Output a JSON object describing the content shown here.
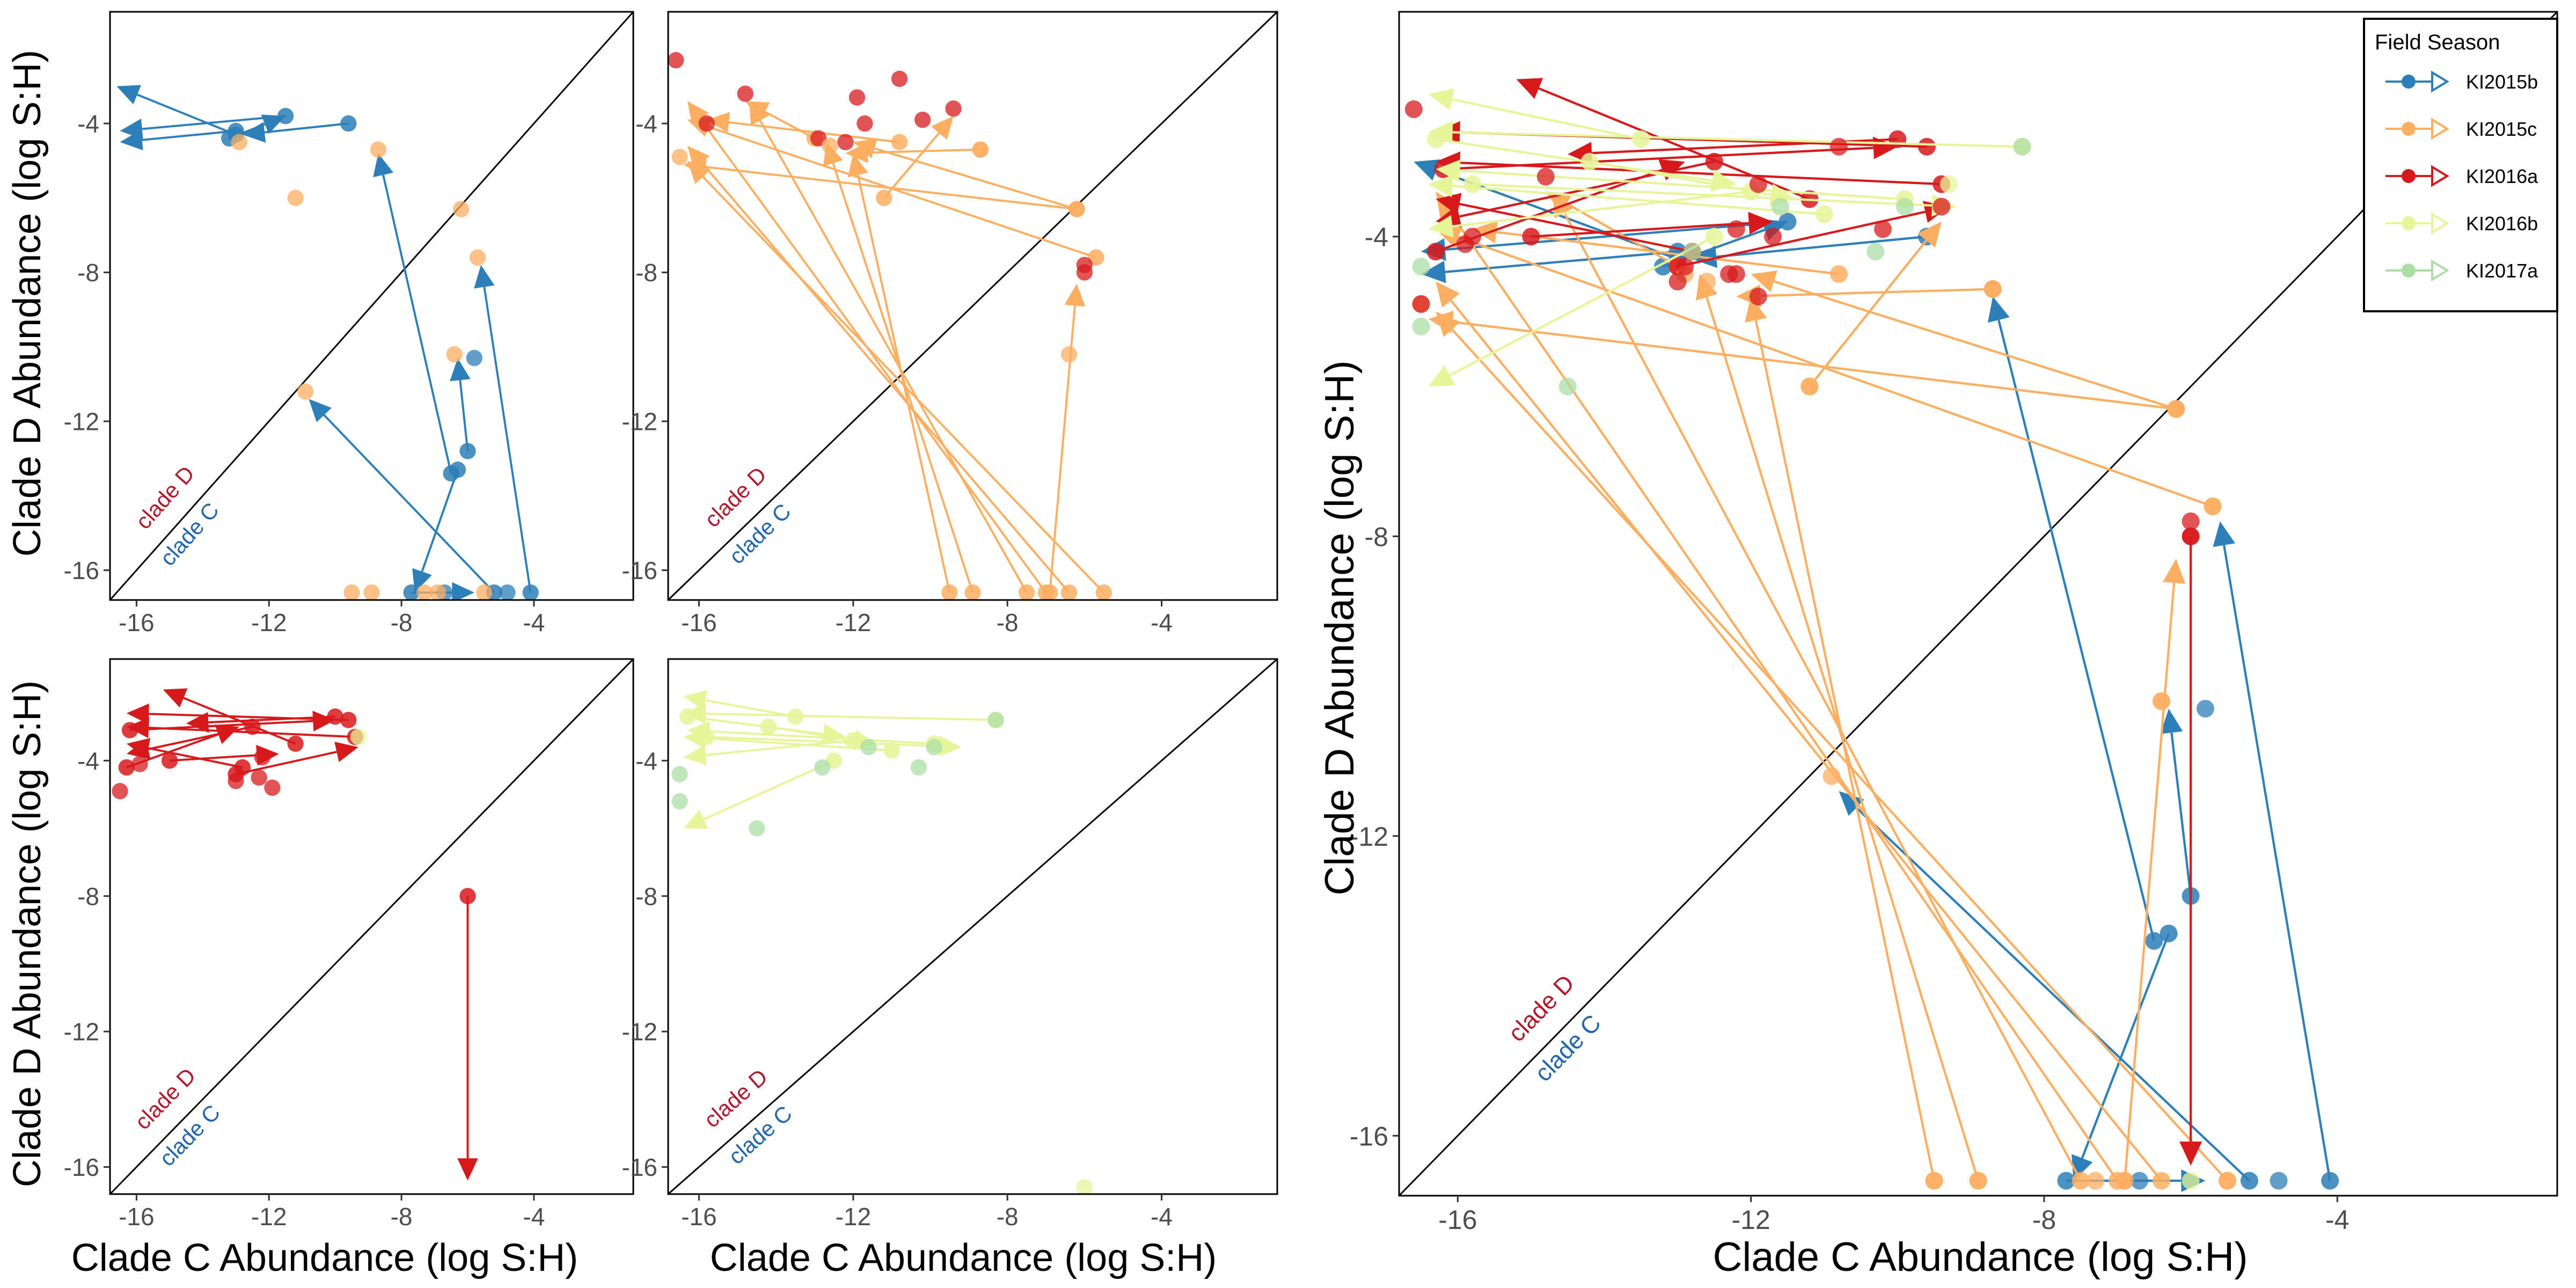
{
  "legend": {
    "title": "Field Season",
    "items": [
      {
        "label": "KI2015b",
        "color": "#2C7FB8"
      },
      {
        "label": "KI2015c",
        "color": "#FDAE61"
      },
      {
        "label": "KI2016a",
        "color": "#D7191C"
      },
      {
        "label": "KI2016b",
        "color": "#E6F598"
      },
      {
        "label": "KI2017a",
        "color": "#ABDDA4"
      }
    ]
  },
  "diagonal_labels": {
    "upper": "clade D",
    "lower": "clade C",
    "upper_color": "#B2182B",
    "lower_color": "#2166AC"
  },
  "axis_text": {
    "x": "Clade C Abundance (log S:H)",
    "y": "Clade D Abundance (log S:H)"
  },
  "chart_data": [
    {
      "type": "scatter",
      "panel": "top-left",
      "season": "KI2015b",
      "xlabel": "",
      "ylabel": "Clade D Abundance (log S:H)",
      "xlim": [
        -16.8,
        -1
      ],
      "ylim": [
        -16.8,
        -1
      ],
      "xticks": [
        -16,
        -12,
        -8,
        -4
      ],
      "yticks": [
        -16,
        -12,
        -8,
        -4
      ],
      "arrows": [
        {
          "from": [
            -9.6,
            -4.0
          ],
          "to": [
            -12.8,
            -4.3
          ],
          "season": "KI2015b"
        },
        {
          "from": [
            -13.0,
            -4.2
          ],
          "to": [
            -16.5,
            -4.5
          ],
          "season": "KI2015b"
        },
        {
          "from": [
            -11.5,
            -3.8
          ],
          "to": [
            -16.5,
            -4.2
          ],
          "season": "KI2015b"
        },
        {
          "from": [
            -13.0,
            -4.3
          ],
          "to": [
            -16.6,
            -3.0
          ],
          "season": "KI2015b"
        },
        {
          "from": [
            -13.2,
            -4.4
          ],
          "to": [
            -11.5,
            -3.8
          ],
          "season": "KI2015b"
        },
        {
          "from": [
            -6.5,
            -13.4
          ],
          "to": [
            -8.7,
            -4.8
          ],
          "season": "KI2015b"
        },
        {
          "from": [
            -6.0,
            -12.8
          ],
          "to": [
            -6.3,
            -10.3
          ],
          "season": "KI2015b"
        },
        {
          "from": [
            -4.1,
            -16.6
          ],
          "to": [
            -5.6,
            -7.8
          ],
          "season": "KI2015b"
        },
        {
          "from": [
            -7.7,
            -16.6
          ],
          "to": [
            -5.8,
            -16.6
          ],
          "season": "KI2015b"
        },
        {
          "from": [
            -6.3,
            -13.3
          ],
          "to": [
            -7.6,
            -16.6
          ],
          "season": "KI2015b"
        },
        {
          "from": [
            -5.2,
            -16.6
          ],
          "to": [
            -10.8,
            -11.4
          ],
          "season": "KI2015b"
        }
      ],
      "points": [
        {
          "x": -5.8,
          "y": -10.3,
          "season": "KI2015b"
        },
        {
          "x": -4.8,
          "y": -16.6,
          "season": "KI2015b"
        },
        {
          "x": -6.7,
          "y": -16.6,
          "season": "KI2015b"
        },
        {
          "x": -6.2,
          "y": -6.3,
          "season": "KI2015c"
        },
        {
          "x": -5.7,
          "y": -7.6,
          "season": "KI2015c"
        },
        {
          "x": -6.4,
          "y": -10.2,
          "season": "KI2015c"
        },
        {
          "x": -11.2,
          "y": -6.0,
          "season": "KI2015c"
        },
        {
          "x": -12.9,
          "y": -4.5,
          "season": "KI2015c"
        },
        {
          "x": -8.7,
          "y": -4.7,
          "season": "KI2015c"
        },
        {
          "x": -9.5,
          "y": -16.6,
          "season": "KI2015c"
        },
        {
          "x": -8.9,
          "y": -16.6,
          "season": "KI2015c"
        },
        {
          "x": -7.3,
          "y": -16.6,
          "season": "KI2015c"
        },
        {
          "x": -6.9,
          "y": -16.6,
          "season": "KI2015c"
        },
        {
          "x": -5.5,
          "y": -16.6,
          "season": "KI2015c"
        },
        {
          "x": -10.9,
          "y": -11.2,
          "season": "KI2015c"
        }
      ]
    },
    {
      "type": "scatter",
      "panel": "top-middle",
      "season": "KI2015c",
      "xlabel": "",
      "ylabel": "",
      "xlim": [
        -16.8,
        -1
      ],
      "ylim": [
        -16.8,
        -1
      ],
      "xticks": [
        -16,
        -12,
        -8,
        -4
      ],
      "yticks": [
        -16,
        -12,
        -8,
        -4
      ],
      "arrows": [
        {
          "from": [
            -8.7,
            -4.7
          ],
          "to": [
            -12.2,
            -4.8
          ],
          "season": "KI2015c"
        },
        {
          "from": [
            -6.2,
            -6.3
          ],
          "to": [
            -16.4,
            -5.1
          ],
          "season": "KI2015c"
        },
        {
          "from": [
            -5.7,
            -7.6
          ],
          "to": [
            -16.3,
            -3.9
          ],
          "season": "KI2015c"
        },
        {
          "from": [
            -6.2,
            -6.3
          ],
          "to": [
            -12.0,
            -4.5
          ],
          "season": "KI2015c"
        },
        {
          "from": [
            -7.0,
            -16.6
          ],
          "to": [
            -16.3,
            -3.4
          ],
          "season": "KI2015c"
        },
        {
          "from": [
            -7.5,
            -16.6
          ],
          "to": [
            -14.7,
            -3.4
          ],
          "season": "KI2015c"
        },
        {
          "from": [
            -9.5,
            -16.6
          ],
          "to": [
            -12.0,
            -4.8
          ],
          "season": "KI2015c"
        },
        {
          "from": [
            -8.9,
            -16.6
          ],
          "to": [
            -12.7,
            -4.5
          ],
          "season": "KI2015c"
        },
        {
          "from": [
            -6.4,
            -16.6
          ],
          "to": [
            -16.3,
            -4.6
          ],
          "season": "KI2015c"
        },
        {
          "from": [
            -6.9,
            -16.6
          ],
          "to": [
            -6.2,
            -8.3
          ],
          "season": "KI2015c"
        },
        {
          "from": [
            -5.5,
            -16.6
          ],
          "to": [
            -16.3,
            -5.0
          ],
          "season": "KI2015c"
        },
        {
          "from": [
            -11.2,
            -6.0
          ],
          "to": [
            -9.4,
            -3.8
          ],
          "season": "KI2015c"
        },
        {
          "from": [
            -10.8,
            -4.5
          ],
          "to": [
            -15.8,
            -3.9
          ],
          "season": "KI2015c"
        },
        {
          "from": [
            -13.0,
            -4.4
          ],
          "to": [
            -14.8,
            -3.4
          ],
          "season": "KI2015c"
        }
      ],
      "points": [
        {
          "x": -16.6,
          "y": -2.3,
          "season": "KI2016a"
        },
        {
          "x": -15.8,
          "y": -4.0,
          "season": "KI2016a"
        },
        {
          "x": -14.8,
          "y": -3.2,
          "season": "KI2016a"
        },
        {
          "x": -12.9,
          "y": -4.4,
          "season": "KI2016a"
        },
        {
          "x": -12.2,
          "y": -4.5,
          "season": "KI2016a"
        },
        {
          "x": -11.9,
          "y": -3.3,
          "season": "KI2016a"
        },
        {
          "x": -11.7,
          "y": -4.0,
          "season": "KI2016a"
        },
        {
          "x": -10.8,
          "y": -2.8,
          "season": "KI2016a"
        },
        {
          "x": -10.2,
          "y": -3.9,
          "season": "KI2016a"
        },
        {
          "x": -9.4,
          "y": -3.6,
          "season": "KI2016a"
        },
        {
          "x": -6.0,
          "y": -7.8,
          "season": "KI2016a"
        },
        {
          "x": -6.0,
          "y": -8.0,
          "season": "KI2016a"
        },
        {
          "x": -16.5,
          "y": -4.9,
          "season": "KI2015c"
        },
        {
          "x": -12.6,
          "y": -4.6,
          "season": "KI2015c"
        },
        {
          "x": -8.7,
          "y": -4.7,
          "season": "KI2015c"
        },
        {
          "x": -6.4,
          "y": -10.2,
          "season": "KI2015c"
        }
      ]
    },
    {
      "type": "scatter",
      "panel": "bottom-left",
      "season": "KI2016a",
      "xlabel": "Clade C Abundance (log S:H)",
      "ylabel": "Clade D Abundance (log S:H)",
      "xlim": [
        -16.8,
        -1
      ],
      "ylim": [
        -16.8,
        -1
      ],
      "xticks": [
        -16,
        -12,
        -8,
        -4
      ],
      "yticks": [
        -16,
        -12,
        -8,
        -4
      ],
      "arrows": [
        {
          "from": [
            -6.0,
            -8.0
          ],
          "to": [
            -6.0,
            -16.4
          ],
          "season": "KI2016a"
        },
        {
          "from": [
            -9.6,
            -2.8
          ],
          "to": [
            -16.3,
            -2.6
          ],
          "season": "KI2016a"
        },
        {
          "from": [
            -9.4,
            -3.3
          ],
          "to": [
            -16.3,
            -3.0
          ],
          "season": "KI2016a"
        },
        {
          "from": [
            -10.0,
            -2.7
          ],
          "to": [
            -14.5,
            -2.9
          ],
          "season": "KI2016a"
        },
        {
          "from": [
            -11.2,
            -3.5
          ],
          "to": [
            -15.2,
            -1.9
          ],
          "season": "KI2016a"
        },
        {
          "from": [
            -12.8,
            -4.2
          ],
          "to": [
            -16.3,
            -3.5
          ],
          "season": "KI2016a"
        },
        {
          "from": [
            -13.0,
            -4.4
          ],
          "to": [
            -9.3,
            -3.6
          ],
          "season": "KI2016a"
        },
        {
          "from": [
            -16.2,
            -3.1
          ],
          "to": [
            -10.0,
            -2.8
          ],
          "season": "KI2016a"
        },
        {
          "from": [
            -15.0,
            -4.0
          ],
          "to": [
            -11.7,
            -3.8
          ],
          "season": "KI2016a"
        },
        {
          "from": [
            -12.5,
            -3.0
          ],
          "to": [
            -16.3,
            -3.8
          ],
          "season": "KI2016a"
        },
        {
          "from": [
            -16.3,
            -4.2
          ],
          "to": [
            -12.9,
            -3.0
          ],
          "season": "KI2016a"
        }
      ],
      "points": [
        {
          "x": -16.5,
          "y": -4.9,
          "season": "KI2016a"
        },
        {
          "x": -15.9,
          "y": -4.1,
          "season": "KI2016a"
        },
        {
          "x": -13.0,
          "y": -4.6,
          "season": "KI2016a"
        },
        {
          "x": -12.3,
          "y": -4.5,
          "season": "KI2016a"
        },
        {
          "x": -11.9,
          "y": -4.8,
          "season": "KI2016a"
        },
        {
          "x": -12.2,
          "y": -3.9,
          "season": "KI2016a"
        },
        {
          "x": -9.3,
          "y": -3.3,
          "season": "KI2016b"
        }
      ]
    },
    {
      "type": "scatter",
      "panel": "bottom-middle",
      "season": "KI2016b",
      "xlabel": "Clade C Abundance (log S:H)",
      "ylabel": "",
      "xlim": [
        -16.8,
        -1
      ],
      "ylim": [
        -16.8,
        -1
      ],
      "xticks": [
        -16,
        -12,
        -8,
        -4
      ],
      "yticks": [
        -16,
        -12,
        -8,
        -4
      ],
      "arrows": [
        {
          "from": [
            -8.3,
            -2.8
          ],
          "to": [
            -16.4,
            -2.6
          ],
          "season": "KI2016b"
        },
        {
          "from": [
            -9.9,
            -3.5
          ],
          "to": [
            -16.3,
            -3.1
          ],
          "season": "KI2016b"
        },
        {
          "from": [
            -12.0,
            -3.4
          ],
          "to": [
            -16.4,
            -3.9
          ],
          "season": "KI2016b"
        },
        {
          "from": [
            -14.2,
            -3.0
          ],
          "to": [
            -11.4,
            -3.5
          ],
          "season": "KI2016b"
        },
        {
          "from": [
            -15.8,
            -3.3
          ],
          "to": [
            -9.2,
            -3.6
          ],
          "season": "KI2016b"
        },
        {
          "from": [
            -16.3,
            -2.7
          ],
          "to": [
            -12.2,
            -3.3
          ],
          "season": "KI2016b"
        },
        {
          "from": [
            -12.5,
            -4.0
          ],
          "to": [
            -16.4,
            -6.0
          ],
          "season": "KI2016b"
        },
        {
          "from": [
            -11.0,
            -3.7
          ],
          "to": [
            -16.4,
            -3.3
          ],
          "season": "KI2016b"
        },
        {
          "from": [
            -13.5,
            -2.7
          ],
          "to": [
            -16.4,
            -2.1
          ],
          "season": "KI2016b"
        }
      ],
      "points": [
        {
          "x": -8.3,
          "y": -2.8,
          "season": "KI2017a"
        },
        {
          "x": -9.9,
          "y": -3.6,
          "season": "KI2017a"
        },
        {
          "x": -11.6,
          "y": -3.6,
          "season": "KI2017a"
        },
        {
          "x": -14.5,
          "y": -6.0,
          "season": "KI2017a"
        },
        {
          "x": -16.5,
          "y": -4.4,
          "season": "KI2017a"
        },
        {
          "x": -16.5,
          "y": -5.2,
          "season": "KI2017a"
        },
        {
          "x": -12.8,
          "y": -4.2,
          "season": "KI2017a"
        },
        {
          "x": -10.3,
          "y": -4.2,
          "season": "KI2017a"
        },
        {
          "x": -6.0,
          "y": -16.6,
          "season": "KI2016b"
        }
      ]
    },
    {
      "type": "scatter",
      "panel": "right",
      "season": "all",
      "xlabel": "Clade C Abundance (log S:H)",
      "ylabel": "Clade D Abundance (log S:H)",
      "xlim": [
        -16.8,
        -1
      ],
      "ylim": [
        -16.8,
        -1
      ],
      "xticks": [
        -16,
        -12,
        -8,
        -4
      ],
      "yticks": [
        -16,
        -12,
        -8,
        -4
      ],
      "legend": "top-right"
    }
  ]
}
